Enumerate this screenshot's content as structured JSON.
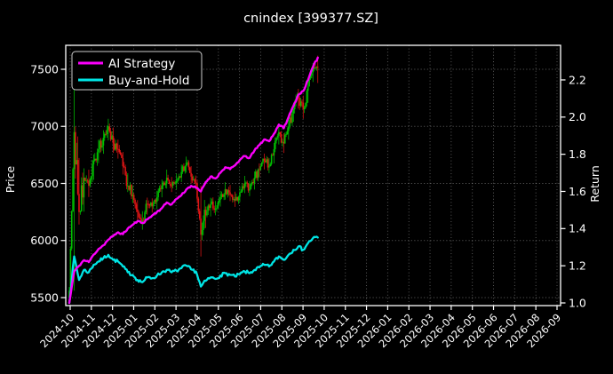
{
  "chart_data": {
    "type": "candlestick+line",
    "title": "cnindex [399377.SZ]",
    "legend_position": "upper left",
    "axes": {
      "left": {
        "label": "Price",
        "ticks": [
          "5500",
          "6000",
          "6500",
          "7000",
          "7500"
        ],
        "tick_values": [
          5500,
          6000,
          6500,
          7000,
          7500
        ]
      },
      "right": {
        "label": "Return",
        "ticks": [
          "1.0",
          "1.2",
          "1.4",
          "1.6",
          "1.8",
          "2.0",
          "2.2"
        ],
        "tick_values": [
          1.0,
          1.2,
          1.4,
          1.6,
          1.8,
          2.0,
          2.2
        ]
      },
      "x": {
        "ticks": [
          "2024-10",
          "2024-11",
          "2024-12",
          "2025-01",
          "2025-02",
          "2025-03",
          "2025-04",
          "2025-05",
          "2025-06",
          "2025-07",
          "2025-08",
          "2025-09",
          "2025-10",
          "2025-11",
          "2025-12",
          "2026-01",
          "2026-02",
          "2026-03",
          "2026-04",
          "2026-05",
          "2026-06",
          "2026-07",
          "2026-08",
          "2026-09"
        ]
      }
    },
    "grid": {
      "style": "dotted",
      "color": "rgba(255,255,255,0.38)"
    },
    "price_weekly": {
      "dates": [
        "2024-09-30",
        "2024-10-08",
        "2024-10-15",
        "2024-10-22",
        "2024-10-29",
        "2024-11-05",
        "2024-11-12",
        "2024-11-19",
        "2024-11-26",
        "2024-12-03",
        "2024-12-10",
        "2024-12-17",
        "2024-12-24",
        "2024-12-31",
        "2025-01-07",
        "2025-01-14",
        "2025-01-21",
        "2025-01-27",
        "2025-02-05",
        "2025-02-12",
        "2025-02-19",
        "2025-02-26",
        "2025-03-05",
        "2025-03-12",
        "2025-03-19",
        "2025-03-26",
        "2025-04-02",
        "2025-04-09",
        "2025-04-16",
        "2025-04-23",
        "2025-04-30",
        "2025-05-07",
        "2025-05-14",
        "2025-05-21",
        "2025-05-28",
        "2025-06-04",
        "2025-06-11",
        "2025-06-18",
        "2025-06-25",
        "2025-07-02",
        "2025-07-09",
        "2025-07-16",
        "2025-07-23",
        "2025-07-30",
        "2025-08-06",
        "2025-08-13",
        "2025-08-20",
        "2025-08-27",
        "2025-09-03",
        "2025-09-10",
        "2025-09-17",
        "2025-09-24"
      ],
      "close": [
        5560,
        6950,
        6250,
        6550,
        6480,
        6700,
        6800,
        6900,
        7000,
        6850,
        6800,
        6650,
        6480,
        6400,
        6250,
        6180,
        6320,
        6300,
        6380,
        6480,
        6550,
        6480,
        6520,
        6600,
        6680,
        6560,
        6500,
        6050,
        6220,
        6320,
        6280,
        6380,
        6450,
        6400,
        6350,
        6420,
        6500,
        6450,
        6550,
        6620,
        6700,
        6650,
        6800,
        6950,
        6850,
        7000,
        7150,
        7250,
        7150,
        7350,
        7500,
        7520
      ],
      "high": [
        5620,
        7320,
        6980,
        6700,
        6700,
        6800,
        6950,
        7020,
        7120,
        7050,
        6950,
        6820,
        6680,
        6550,
        6420,
        6320,
        6420,
        6400,
        6480,
        6580,
        6680,
        6620,
        6640,
        6720,
        6780,
        6700,
        6620,
        6480,
        6320,
        6420,
        6400,
        6480,
        6560,
        6540,
        6480,
        6520,
        6620,
        6580,
        6650,
        6720,
        6800,
        6780,
        6900,
        7050,
        7000,
        7100,
        7250,
        7380,
        7320,
        7450,
        7600,
        7620
      ],
      "low": [
        5420,
        5560,
        6050,
        6150,
        6300,
        6420,
        6600,
        6700,
        6800,
        6700,
        6650,
        6520,
        6380,
        6280,
        6080,
        6040,
        6150,
        6200,
        6220,
        6320,
        6420,
        6380,
        6400,
        6480,
        6550,
        6450,
        6400,
        5860,
        6020,
        6150,
        6180,
        6250,
        6320,
        6300,
        6250,
        6300,
        6380,
        6350,
        6400,
        6500,
        6560,
        6550,
        6620,
        6780,
        6700,
        6820,
        6980,
        7080,
        7000,
        7120,
        7320,
        7380
      ]
    },
    "series": [
      {
        "name": "AI Strategy",
        "axis": "right",
        "color": "#fb00fb",
        "values": [
          1.0,
          1.17,
          1.2,
          1.23,
          1.22,
          1.26,
          1.29,
          1.31,
          1.34,
          1.36,
          1.38,
          1.37,
          1.4,
          1.42,
          1.44,
          1.43,
          1.45,
          1.47,
          1.49,
          1.51,
          1.54,
          1.53,
          1.56,
          1.58,
          1.61,
          1.63,
          1.62,
          1.6,
          1.65,
          1.68,
          1.67,
          1.7,
          1.73,
          1.72,
          1.74,
          1.77,
          1.79,
          1.78,
          1.82,
          1.85,
          1.88,
          1.87,
          1.91,
          1.96,
          1.94,
          2.0,
          2.06,
          2.12,
          2.14,
          2.2,
          2.27,
          2.32
        ]
      },
      {
        "name": "Buy-and-Hold",
        "axis": "right",
        "color": "#00e5e5",
        "values": [
          1.0,
          1.25,
          1.124,
          1.178,
          1.165,
          1.205,
          1.223,
          1.241,
          1.259,
          1.232,
          1.223,
          1.196,
          1.165,
          1.151,
          1.124,
          1.112,
          1.137,
          1.133,
          1.147,
          1.165,
          1.178,
          1.165,
          1.173,
          1.187,
          1.201,
          1.18,
          1.169,
          1.088,
          1.119,
          1.137,
          1.129,
          1.147,
          1.16,
          1.151,
          1.142,
          1.155,
          1.169,
          1.16,
          1.178,
          1.191,
          1.205,
          1.196,
          1.223,
          1.25,
          1.232,
          1.259,
          1.286,
          1.304,
          1.286,
          1.322,
          1.349,
          1.352
        ]
      }
    ],
    "colors": {
      "background": "#000000",
      "text": "#ffffff",
      "axis_border": "#ffffff",
      "candle_up": "#00c000",
      "candle_down": "#e01515",
      "legend_border": "#cccccc"
    }
  }
}
